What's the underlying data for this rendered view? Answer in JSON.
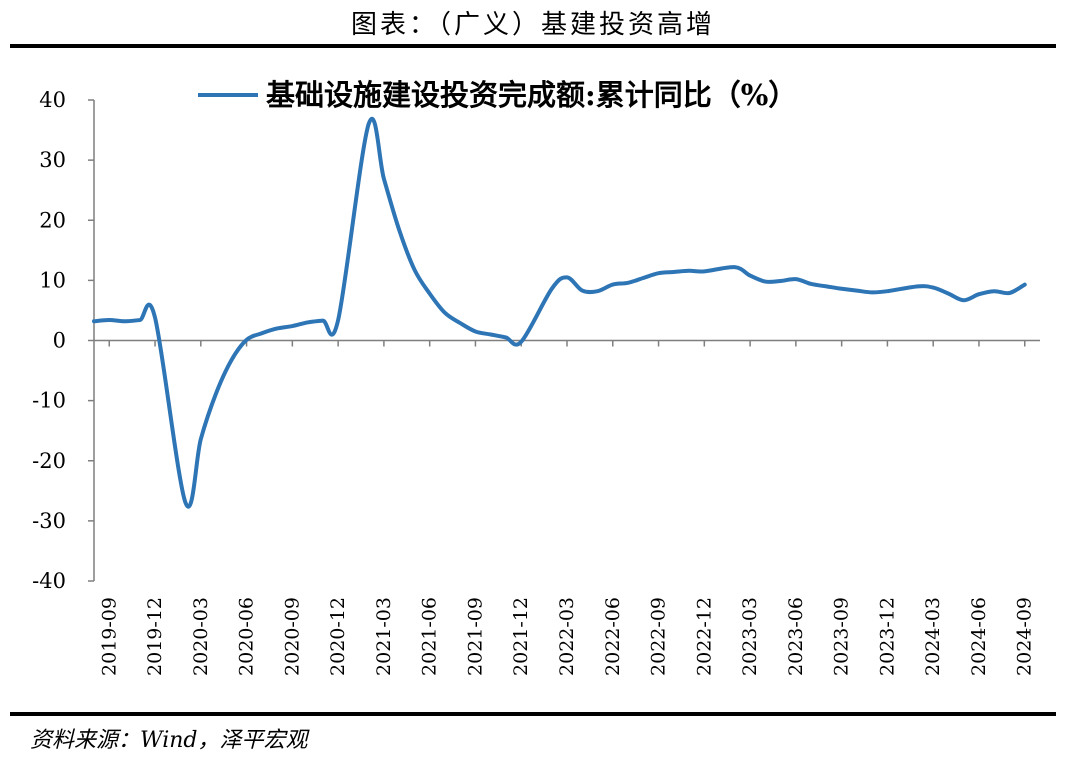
{
  "page": {
    "title": "图表：（广义）基建投资高增",
    "source": "资料来源：Wind，泽平宏观"
  },
  "chart_data": {
    "type": "line",
    "legend_position": "top-center",
    "grid": false,
    "ylim": [
      -40,
      40
    ],
    "yticks": [
      40,
      30,
      20,
      10,
      0,
      -10,
      -20,
      -30,
      -40
    ],
    "x_ticks": [
      "2019-09",
      "2019-12",
      "2020-03",
      "2020-06",
      "2020-09",
      "2020-12",
      "2021-03",
      "2021-06",
      "2021-09",
      "2021-12",
      "2022-03",
      "2022-06",
      "2022-09",
      "2022-12",
      "2023-03",
      "2023-06",
      "2023-09",
      "2023-12",
      "2024-03",
      "2024-06",
      "2024-09"
    ],
    "color": "#2E75B6",
    "series": [
      {
        "name": "基础设施建设投资完成额:累计同比（%）",
        "points": [
          [
            "2019-08",
            3.2
          ],
          [
            "2019-09",
            3.4
          ],
          [
            "2019-10",
            3.2
          ],
          [
            "2019-11",
            3.4
          ],
          [
            "2019-12",
            3.8
          ],
          [
            "2020-02",
            -27.0
          ],
          [
            "2020-03",
            -16.4
          ],
          [
            "2020-04",
            -8.8
          ],
          [
            "2020-05",
            -3.3
          ],
          [
            "2020-06",
            0.1
          ],
          [
            "2020-07",
            1.2
          ],
          [
            "2020-08",
            2.0
          ],
          [
            "2020-09",
            2.4
          ],
          [
            "2020-10",
            3.0
          ],
          [
            "2020-11",
            3.3
          ],
          [
            "2020-12",
            3.4
          ],
          [
            "2021-02",
            36.0
          ],
          [
            "2021-03",
            26.9
          ],
          [
            "2021-04",
            18.4
          ],
          [
            "2021-05",
            11.8
          ],
          [
            "2021-06",
            7.8
          ],
          [
            "2021-07",
            4.6
          ],
          [
            "2021-08",
            2.9
          ],
          [
            "2021-09",
            1.5
          ],
          [
            "2021-10",
            1.0
          ],
          [
            "2021-11",
            0.5
          ],
          [
            "2021-12",
            -0.2
          ],
          [
            "2022-02",
            8.6
          ],
          [
            "2022-03",
            10.5
          ],
          [
            "2022-04",
            8.3
          ],
          [
            "2022-05",
            8.2
          ],
          [
            "2022-06",
            9.3
          ],
          [
            "2022-07",
            9.6
          ],
          [
            "2022-08",
            10.4
          ],
          [
            "2022-09",
            11.2
          ],
          [
            "2022-10",
            11.4
          ],
          [
            "2022-11",
            11.6
          ],
          [
            "2022-12",
            11.5
          ],
          [
            "2023-02",
            12.2
          ],
          [
            "2023-03",
            10.8
          ],
          [
            "2023-04",
            9.8
          ],
          [
            "2023-05",
            9.9
          ],
          [
            "2023-06",
            10.2
          ],
          [
            "2023-07",
            9.4
          ],
          [
            "2023-08",
            9.0
          ],
          [
            "2023-09",
            8.6
          ],
          [
            "2023-10",
            8.3
          ],
          [
            "2023-11",
            8.0
          ],
          [
            "2023-12",
            8.2
          ],
          [
            "2024-02",
            9.0
          ],
          [
            "2024-03",
            8.8
          ],
          [
            "2024-04",
            7.8
          ],
          [
            "2024-05",
            6.7
          ],
          [
            "2024-06",
            7.7
          ],
          [
            "2024-07",
            8.2
          ],
          [
            "2024-08",
            7.9
          ],
          [
            "2024-09",
            9.3
          ]
        ]
      }
    ]
  }
}
